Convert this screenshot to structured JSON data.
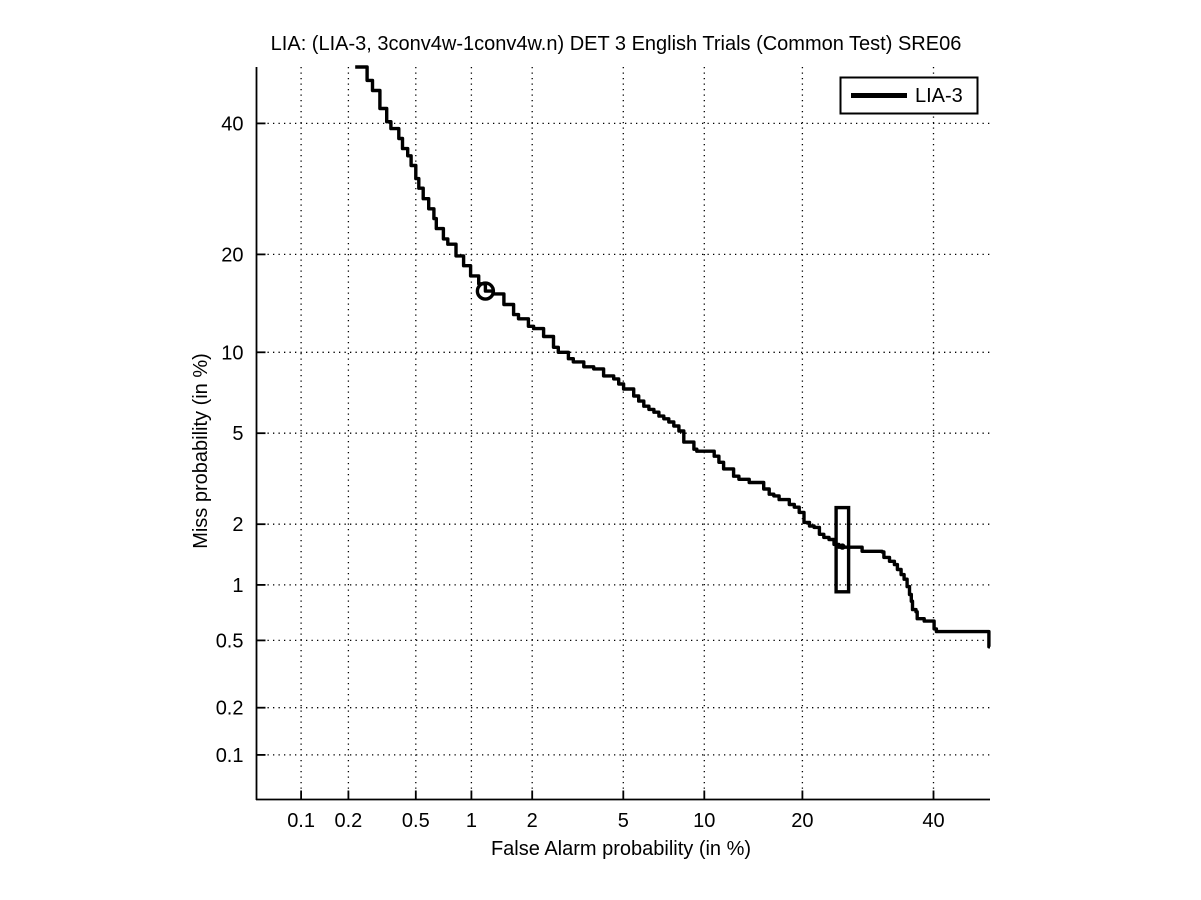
{
  "figure": {
    "background": "#ffffff",
    "foreground": "#000000"
  },
  "chart_data": {
    "type": "line",
    "subtype": "DET-curve (probit-probit scale)",
    "title": "LIA: (LIA-3, 3conv4w-1conv4w.n) DET 3 English Trials (Common Test) SRE06",
    "xlabel": "False Alarm probability (in %)",
    "ylabel": "Miss probability (in %)",
    "xlim": [
      0.05,
      50
    ],
    "ylim": [
      0.05,
      50
    ],
    "x_ticks": [
      0.1,
      0.2,
      0.5,
      1,
      2,
      5,
      10,
      20,
      40
    ],
    "y_ticks": [
      0.1,
      0.2,
      0.5,
      1,
      2,
      5,
      10,
      20,
      40
    ],
    "grid": "dotted",
    "line_color": "#000000",
    "legend": {
      "position": "top-right",
      "entries": [
        {
          "label": "LIA-3",
          "color": "#000000"
        }
      ]
    },
    "series": [
      {
        "name": "LIA-3",
        "color": "#000000",
        "points_format": "[false_alarm_pct, miss_pct]",
        "points": [
          [
            0.22,
            50
          ],
          [
            0.26,
            47.6
          ],
          [
            0.28,
            45.8
          ],
          [
            0.31,
            42.6
          ],
          [
            0.34,
            40.3
          ],
          [
            0.36,
            39.1
          ],
          [
            0.4,
            37.4
          ],
          [
            0.42,
            35.7
          ],
          [
            0.45,
            34.5
          ],
          [
            0.47,
            32.9
          ],
          [
            0.5,
            30.8
          ],
          [
            0.52,
            29.3
          ],
          [
            0.55,
            27.7
          ],
          [
            0.59,
            26.2
          ],
          [
            0.63,
            24.8
          ],
          [
            0.65,
            23.4
          ],
          [
            0.71,
            22.0
          ],
          [
            0.75,
            21.3
          ],
          [
            0.83,
            19.8
          ],
          [
            0.91,
            18.6
          ],
          [
            0.99,
            17.4
          ],
          [
            1.09,
            16.5
          ],
          [
            1.18,
            15.7
          ],
          [
            1.29,
            15.4
          ],
          [
            1.46,
            14.3
          ],
          [
            1.63,
            13.3
          ],
          [
            1.72,
            12.9
          ],
          [
            1.92,
            12.2
          ],
          [
            2.03,
            12.0
          ],
          [
            2.26,
            11.3
          ],
          [
            2.51,
            10.4
          ],
          [
            2.64,
            10.0
          ],
          [
            2.93,
            9.5
          ],
          [
            3.08,
            9.26
          ],
          [
            3.42,
            8.9
          ],
          [
            3.77,
            8.75
          ],
          [
            4.15,
            8.26
          ],
          [
            4.57,
            8.06
          ],
          [
            4.79,
            7.72
          ],
          [
            5.01,
            7.4
          ],
          [
            5.5,
            6.97
          ],
          [
            5.75,
            6.67
          ],
          [
            6.02,
            6.38
          ],
          [
            6.3,
            6.2
          ],
          [
            6.58,
            6.05
          ],
          [
            6.87,
            5.84
          ],
          [
            7.17,
            5.7
          ],
          [
            7.48,
            5.54
          ],
          [
            7.8,
            5.34
          ],
          [
            8.14,
            5.1
          ],
          [
            8.48,
            4.6
          ],
          [
            9.2,
            4.3
          ],
          [
            9.42,
            4.22
          ],
          [
            10.5,
            4.22
          ],
          [
            10.8,
            4.02
          ],
          [
            11.2,
            3.79
          ],
          [
            11.6,
            3.55
          ],
          [
            12.5,
            3.3
          ],
          [
            13.0,
            3.2
          ],
          [
            14.0,
            3.1
          ],
          [
            15.0,
            3.1
          ],
          [
            15.5,
            2.9
          ],
          [
            16.1,
            2.75
          ],
          [
            16.6,
            2.7
          ],
          [
            17.2,
            2.6
          ],
          [
            17.8,
            2.6
          ],
          [
            18.4,
            2.47
          ],
          [
            19.0,
            2.4
          ],
          [
            19.6,
            2.27
          ],
          [
            20.2,
            2.04
          ],
          [
            20.9,
            1.96
          ],
          [
            21.5,
            1.93
          ],
          [
            22.2,
            1.79
          ],
          [
            22.8,
            1.73
          ],
          [
            23.5,
            1.69
          ],
          [
            24.2,
            1.6
          ],
          [
            24.9,
            1.55
          ],
          [
            28.3,
            1.55
          ],
          [
            28.3,
            1.48
          ],
          [
            31.4,
            1.47
          ],
          [
            31.7,
            1.38
          ],
          [
            32.6,
            1.32
          ],
          [
            33.4,
            1.27
          ],
          [
            33.9,
            1.2
          ],
          [
            34.5,
            1.13
          ],
          [
            35.0,
            1.07
          ],
          [
            35.5,
            0.98
          ],
          [
            35.9,
            0.89
          ],
          [
            36.2,
            0.82
          ],
          [
            36.4,
            0.74
          ],
          [
            37.0,
            0.72
          ],
          [
            37.2,
            0.66
          ],
          [
            38.4,
            0.64
          ],
          [
            40.1,
            0.58
          ],
          [
            40.5,
            0.56
          ],
          [
            49.8,
            0.56
          ],
          [
            49.8,
            0.46
          ],
          [
            50.0,
            0.46
          ]
        ]
      }
    ],
    "markers": [
      {
        "shape": "circle",
        "name": "min-dcf-point",
        "fa": 1.18,
        "miss": 15.7
      },
      {
        "shape": "box",
        "name": "act-dcf-box",
        "fa_min": 24.5,
        "fa_max": 26.3,
        "miss_min": 0.92,
        "miss_max": 2.39
      },
      {
        "shape": "dot",
        "name": "act-dcf-point",
        "fa": 25.4,
        "miss": 1.56
      }
    ]
  }
}
